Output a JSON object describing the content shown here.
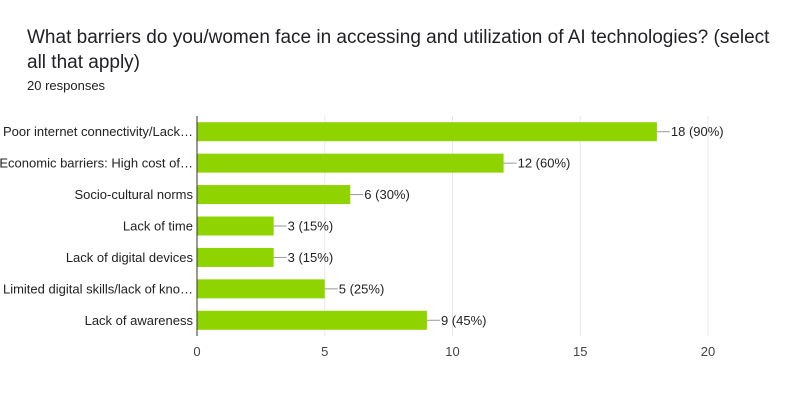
{
  "header": {
    "title": "What barriers do you/women face in accessing and utilization of AI technologies? (select all that apply)",
    "responses": "20 responses"
  },
  "colors": {
    "bar": "#8fd400",
    "grid": "#e8e8e8",
    "axis": "#333333"
  },
  "chart_data": {
    "type": "bar",
    "orientation": "horizontal",
    "title": "What barriers do you/women face in accessing and utilization of AI technologies? (select all that apply)",
    "categories": [
      "Poor internet connectivity/Lack…",
      "Economic barriers: High cost of…",
      "Socio-cultural norms",
      "Lack of time",
      "Lack of digital devices",
      "Limited digital skills/lack of kno…",
      "Lack of awareness"
    ],
    "values": [
      18,
      12,
      6,
      3,
      3,
      5,
      9
    ],
    "value_labels": [
      "18 (90%)",
      "12 (60%)",
      "6 (30%)",
      "3 (15%)",
      "3 (15%)",
      "5 (25%)",
      "9 (45%)"
    ],
    "x_ticks": [
      "0",
      "5",
      "10",
      "15",
      "20"
    ],
    "xlim": [
      0,
      20
    ],
    "grid": true,
    "legend": "none"
  }
}
